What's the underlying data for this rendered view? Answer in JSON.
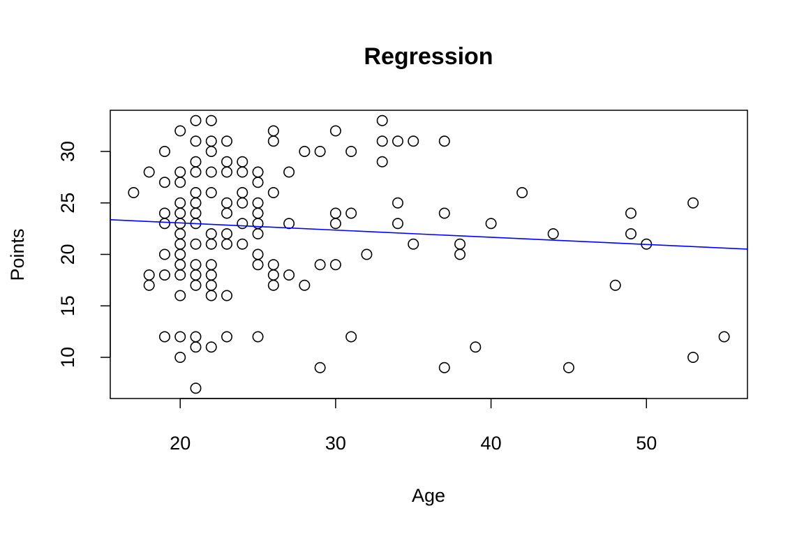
{
  "chart_data": {
    "type": "scatter",
    "title": "Regression",
    "xlabel": "Age",
    "ylabel": "Points",
    "xlim": [
      15.5,
      56.5
    ],
    "ylim": [
      6,
      34
    ],
    "xticks": [
      20,
      30,
      40,
      50
    ],
    "yticks": [
      10,
      15,
      20,
      25,
      30
    ],
    "grid": false,
    "colors": {
      "points": "#000000",
      "regression_line": "#0000ff",
      "frame": "#000000"
    },
    "points": [
      [
        17,
        26
      ],
      [
        18,
        28
      ],
      [
        18,
        18
      ],
      [
        18,
        17
      ],
      [
        19,
        30
      ],
      [
        19,
        27
      ],
      [
        19,
        24
      ],
      [
        19,
        23
      ],
      [
        19,
        20
      ],
      [
        19,
        18
      ],
      [
        19,
        12
      ],
      [
        20,
        32
      ],
      [
        20,
        28
      ],
      [
        20,
        27
      ],
      [
        20,
        25
      ],
      [
        20,
        24
      ],
      [
        20,
        23
      ],
      [
        20,
        22
      ],
      [
        20,
        21
      ],
      [
        20,
        20
      ],
      [
        20,
        19
      ],
      [
        20,
        18
      ],
      [
        20,
        16
      ],
      [
        20,
        12
      ],
      [
        20,
        10
      ],
      [
        21,
        33
      ],
      [
        21,
        31
      ],
      [
        21,
        29
      ],
      [
        21,
        28
      ],
      [
        21,
        26
      ],
      [
        21,
        25
      ],
      [
        21,
        24
      ],
      [
        21,
        23
      ],
      [
        21,
        21
      ],
      [
        21,
        19
      ],
      [
        21,
        18
      ],
      [
        21,
        17
      ],
      [
        21,
        12
      ],
      [
        21,
        11
      ],
      [
        21,
        7
      ],
      [
        22,
        33
      ],
      [
        22,
        31
      ],
      [
        22,
        30
      ],
      [
        22,
        28
      ],
      [
        22,
        26
      ],
      [
        22,
        22
      ],
      [
        22,
        21
      ],
      [
        22,
        19
      ],
      [
        22,
        18
      ],
      [
        22,
        17
      ],
      [
        22,
        16
      ],
      [
        22,
        11
      ],
      [
        23,
        31
      ],
      [
        23,
        29
      ],
      [
        23,
        28
      ],
      [
        23,
        25
      ],
      [
        23,
        24
      ],
      [
        23,
        22
      ],
      [
        23,
        21
      ],
      [
        23,
        16
      ],
      [
        23,
        12
      ],
      [
        24,
        29
      ],
      [
        24,
        28
      ],
      [
        24,
        26
      ],
      [
        24,
        25
      ],
      [
        24,
        23
      ],
      [
        24,
        21
      ],
      [
        25,
        28
      ],
      [
        25,
        27
      ],
      [
        25,
        25
      ],
      [
        25,
        24
      ],
      [
        25,
        23
      ],
      [
        25,
        22
      ],
      [
        25,
        20
      ],
      [
        25,
        19
      ],
      [
        25,
        12
      ],
      [
        26,
        32
      ],
      [
        26,
        31
      ],
      [
        26,
        26
      ],
      [
        26,
        19
      ],
      [
        26,
        18
      ],
      [
        26,
        17
      ],
      [
        27,
        28
      ],
      [
        27,
        23
      ],
      [
        27,
        18
      ],
      [
        28,
        30
      ],
      [
        28,
        17
      ],
      [
        29,
        30
      ],
      [
        29,
        19
      ],
      [
        29,
        9
      ],
      [
        30,
        32
      ],
      [
        30,
        24
      ],
      [
        30,
        23
      ],
      [
        30,
        19
      ],
      [
        31,
        30
      ],
      [
        31,
        24
      ],
      [
        31,
        12
      ],
      [
        32,
        20
      ],
      [
        33,
        33
      ],
      [
        33,
        31
      ],
      [
        33,
        29
      ],
      [
        34,
        31
      ],
      [
        34,
        25
      ],
      [
        34,
        23
      ],
      [
        35,
        31
      ],
      [
        35,
        21
      ],
      [
        37,
        31
      ],
      [
        37,
        24
      ],
      [
        37,
        9
      ],
      [
        38,
        21
      ],
      [
        38,
        20
      ],
      [
        39,
        11
      ],
      [
        40,
        23
      ],
      [
        42,
        26
      ],
      [
        44,
        22
      ],
      [
        45,
        9
      ],
      [
        48,
        17
      ],
      [
        49,
        24
      ],
      [
        49,
        22
      ],
      [
        50,
        21
      ],
      [
        53,
        25
      ],
      [
        53,
        10
      ],
      [
        55,
        12
      ]
    ],
    "regression_line": {
      "intercept": 24.45,
      "slope": -0.0697
    }
  }
}
